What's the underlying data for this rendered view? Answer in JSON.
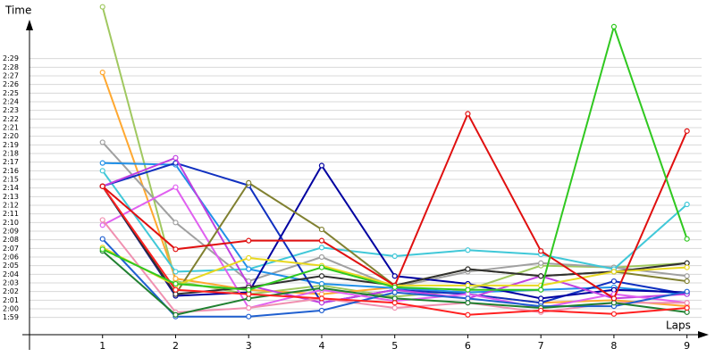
{
  "chart_data": {
    "type": "line",
    "y_label": "Time",
    "x_label": "Laps",
    "x": [
      1,
      2,
      3,
      4,
      5,
      6,
      7,
      8,
      9
    ],
    "xlim": [
      0,
      9.2
    ],
    "xticks": [
      1,
      2,
      3,
      4,
      5,
      6,
      7,
      8,
      9
    ],
    "ylim": [
      117,
      153
    ],
    "yticks": [
      {
        "value": 119,
        "label": "1:59"
      },
      {
        "value": 120,
        "label": "2:00"
      },
      {
        "value": 121,
        "label": "2:01"
      },
      {
        "value": 122,
        "label": "2:02"
      },
      {
        "value": 123,
        "label": "2:03"
      },
      {
        "value": 124,
        "label": "2:04"
      },
      {
        "value": 125,
        "label": "2:05"
      },
      {
        "value": 126,
        "label": "2:06"
      },
      {
        "value": 127,
        "label": "2:07"
      },
      {
        "value": 128,
        "label": "2:08"
      },
      {
        "value": 129,
        "label": "2:09"
      },
      {
        "value": 130,
        "label": "2:10"
      },
      {
        "value": 131,
        "label": "2:11"
      },
      {
        "value": 132,
        "label": "2:12"
      },
      {
        "value": 133,
        "label": "2:13"
      },
      {
        "value": 134,
        "label": "2:14"
      },
      {
        "value": 135,
        "label": "2:15"
      },
      {
        "value": 136,
        "label": "2:16"
      },
      {
        "value": 137,
        "label": "2:17"
      },
      {
        "value": 138,
        "label": "2:18"
      },
      {
        "value": 139,
        "label": "2:19"
      },
      {
        "value": 140,
        "label": "2:20"
      },
      {
        "value": 141,
        "label": "2:21"
      },
      {
        "value": 142,
        "label": "2:22"
      },
      {
        "value": 143,
        "label": "2:23"
      },
      {
        "value": 144,
        "label": "2:24"
      },
      {
        "value": 145,
        "label": "2:25"
      },
      {
        "value": 146,
        "label": "2:26"
      },
      {
        "value": 147,
        "label": "2:27"
      },
      {
        "value": 148,
        "label": "2:28"
      },
      {
        "value": 149,
        "label": "2:29"
      }
    ],
    "grid": true,
    "series": [
      {
        "color": "#a0c860",
        "values": [
          155,
          123.2,
          121.7,
          122.7,
          121.4,
          122.2,
          125.0,
          124.8,
          125.3
        ]
      },
      {
        "color": "#ffa830",
        "values": [
          147.4,
          123.5,
          122.2,
          121.7,
          122.5,
          121.7,
          120.7,
          121.0,
          120.3
        ]
      },
      {
        "color": "#a0a0a0",
        "values": [
          139.3,
          130.0,
          123.2,
          126.0,
          122.5,
          124.3,
          125.3,
          124.8,
          123.8
        ]
      },
      {
        "color": "#40c8d8",
        "values": [
          136.0,
          124.3,
          124.6,
          127.1,
          126.1,
          126.8,
          126.3,
          124.6,
          132.1
        ]
      },
      {
        "color": "#2090e8",
        "values": [
          136.9,
          136.7,
          124.6,
          122.9,
          122.4,
          121.9,
          122.2,
          122.5,
          121.7
        ]
      },
      {
        "color": "#1030c0",
        "values": [
          134.2,
          136.9,
          134.3,
          120.7,
          122.2,
          121.7,
          120.7,
          123.2,
          121.7
        ]
      },
      {
        "color": "#0000a0",
        "values": [
          134.2,
          121.5,
          121.9,
          136.6,
          123.8,
          122.9,
          121.2,
          122.2,
          121.9
        ]
      },
      {
        "color": "#c040e0",
        "values": [
          134.2,
          137.5,
          122.7,
          120.7,
          122.2,
          121.2,
          123.8,
          121.2,
          121.7
        ]
      },
      {
        "color": "#e060f0",
        "values": [
          129.7,
          134.1,
          120.1,
          122.2,
          120.9,
          121.7,
          120.1,
          121.7,
          120.7
        ]
      },
      {
        "color": "#f090b0",
        "values": [
          130.3,
          119.6,
          120.1,
          121.2,
          120.1,
          120.7,
          119.6,
          120.7,
          120.7
        ]
      },
      {
        "color": "#808030",
        "values": [
          134.2,
          121.7,
          134.6,
          129.2,
          122.7,
          124.6,
          123.8,
          124.3,
          123.2
        ]
      },
      {
        "color": "#303030",
        "values": [
          134.2,
          121.7,
          122.5,
          123.8,
          122.7,
          124.6,
          123.8,
          124.3,
          125.3
        ]
      },
      {
        "color": "#e8d820",
        "values": [
          127.1,
          122.7,
          125.9,
          125.0,
          122.7,
          122.7,
          122.7,
          124.3,
          124.8
        ]
      },
      {
        "color": "#2060d0",
        "values": [
          128.1,
          119.1,
          119.1,
          119.8,
          121.9,
          121.2,
          120.3,
          120.3,
          122.0
        ]
      },
      {
        "color": "#208030",
        "values": [
          126.7,
          119.3,
          121.2,
          122.4,
          121.2,
          120.7,
          120.1,
          120.7,
          119.6
        ]
      },
      {
        "color": "#ff2020",
        "values": [
          134.2,
          122.2,
          121.7,
          121.2,
          120.7,
          119.3,
          119.8,
          119.4,
          120.1
        ]
      },
      {
        "color": "#e01010",
        "values": [
          134.2,
          126.9,
          127.9,
          127.9,
          122.7,
          142.6,
          126.7,
          121.2,
          140.6
        ]
      },
      {
        "color": "#30c820",
        "values": [
          126.9,
          122.9,
          122.2,
          124.8,
          122.5,
          122.2,
          122.2,
          152.7,
          128.1
        ]
      }
    ]
  }
}
